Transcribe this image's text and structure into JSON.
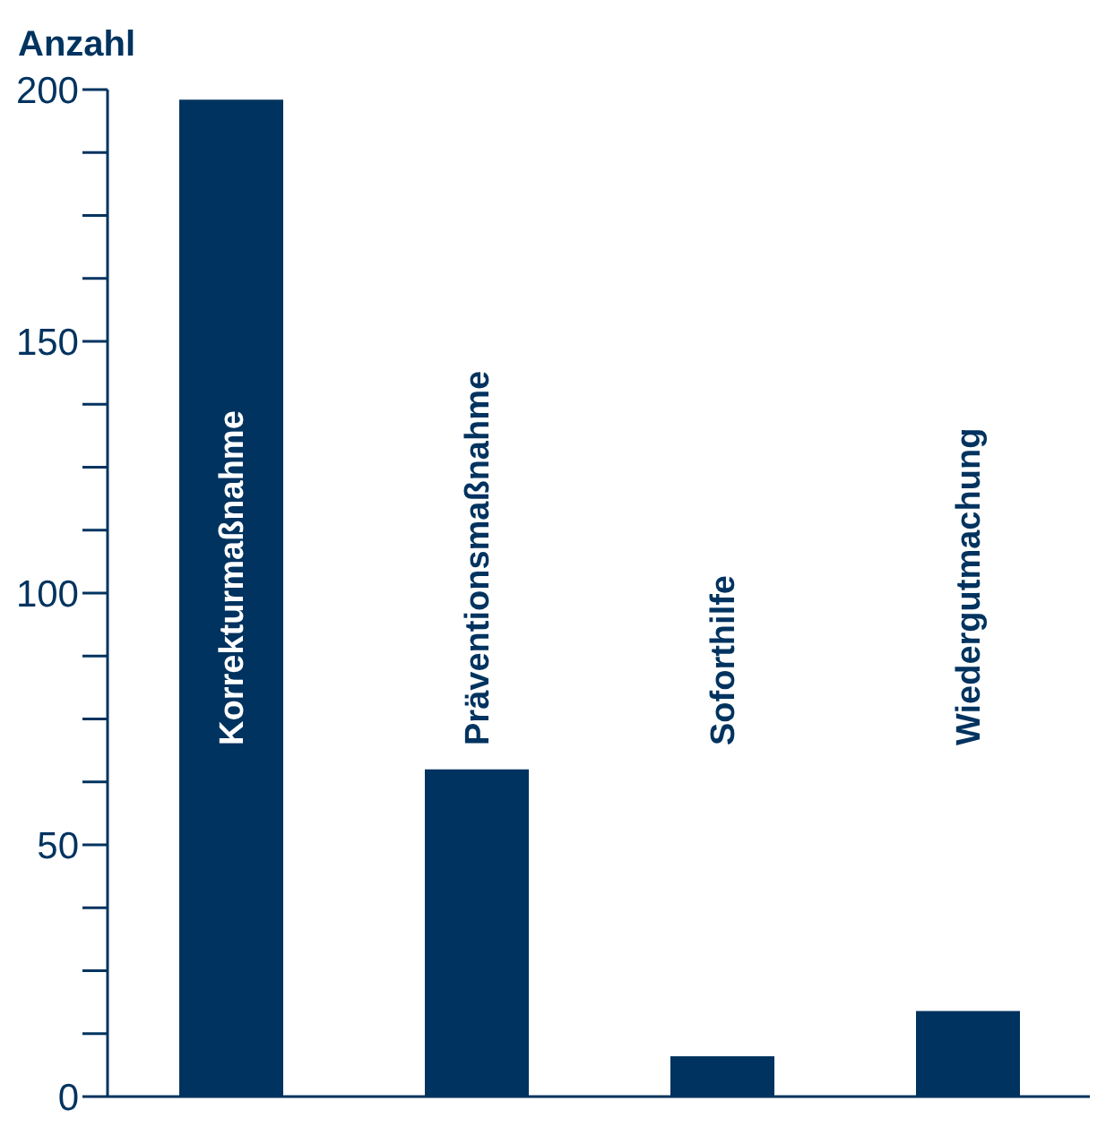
{
  "chart_data": {
    "type": "bar",
    "ylabel": "Anzahl",
    "categories": [
      "Korrekturmaßnahme",
      "Präventionsmaßnahme",
      "Soforthilfe",
      "Wiedergutmachung"
    ],
    "values": [
      198,
      65,
      8,
      17
    ],
    "color": "#00335f",
    "ylim": [
      0,
      200
    ],
    "yticks": [
      0,
      {
        "value": 12.5,
        "label": null
      },
      {
        "value": 25,
        "label": null
      },
      {
        "value": 37.5,
        "label": null
      },
      50,
      {
        "value": 62.5,
        "label": null
      },
      {
        "value": 75,
        "label": null
      },
      {
        "value": 87.5,
        "label": null
      },
      100,
      {
        "value": 112.5,
        "label": null
      },
      {
        "value": 125,
        "label": null
      },
      {
        "value": 137.5,
        "label": null
      },
      150,
      {
        "value": 162.5,
        "label": null
      },
      {
        "value": 175,
        "label": null
      },
      {
        "value": 187.5,
        "label": null
      },
      200
    ],
    "grid": false
  }
}
